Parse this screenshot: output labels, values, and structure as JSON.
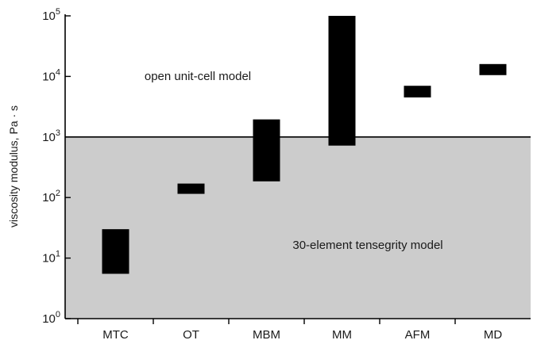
{
  "chart_data": {
    "type": "bar",
    "subtype": "floating range bars",
    "y_scale": "log",
    "ylim": [
      1,
      100000
    ],
    "ylabel": "viscosity modulus, Pa · s",
    "xlabel": "",
    "y_ticks": [
      {
        "value": 1,
        "base": "10",
        "exp": "0"
      },
      {
        "value": 10,
        "base": "10",
        "exp": "1"
      },
      {
        "value": 100,
        "base": "10",
        "exp": "2"
      },
      {
        "value": 1000,
        "base": "10",
        "exp": "3"
      },
      {
        "value": 10000,
        "base": "10",
        "exp": "4"
      },
      {
        "value": 100000,
        "base": "10",
        "exp": "5"
      }
    ],
    "categories": [
      "MTC",
      "OT",
      "MBM",
      "MM",
      "AFM",
      "MD"
    ],
    "ranges": [
      {
        "category": "MTC",
        "low": 5.5,
        "high": 30
      },
      {
        "category": "OT",
        "low": 115,
        "high": 170
      },
      {
        "category": "MBM",
        "low": 185,
        "high": 1950
      },
      {
        "category": "MM",
        "low": 720,
        "high": 100000
      },
      {
        "category": "AFM",
        "low": 4500,
        "high": 7000
      },
      {
        "category": "MD",
        "low": 10500,
        "high": 16000
      }
    ],
    "threshold": {
      "value": 1000
    },
    "regions": [
      {
        "name": "upper",
        "label": "open unit-cell model",
        "fill": "#ffffff"
      },
      {
        "name": "lower",
        "label": "30-element tensegrity model",
        "fill": "#cccccc"
      }
    ],
    "bar_color": "#000000",
    "grid": false,
    "legend": "none"
  }
}
